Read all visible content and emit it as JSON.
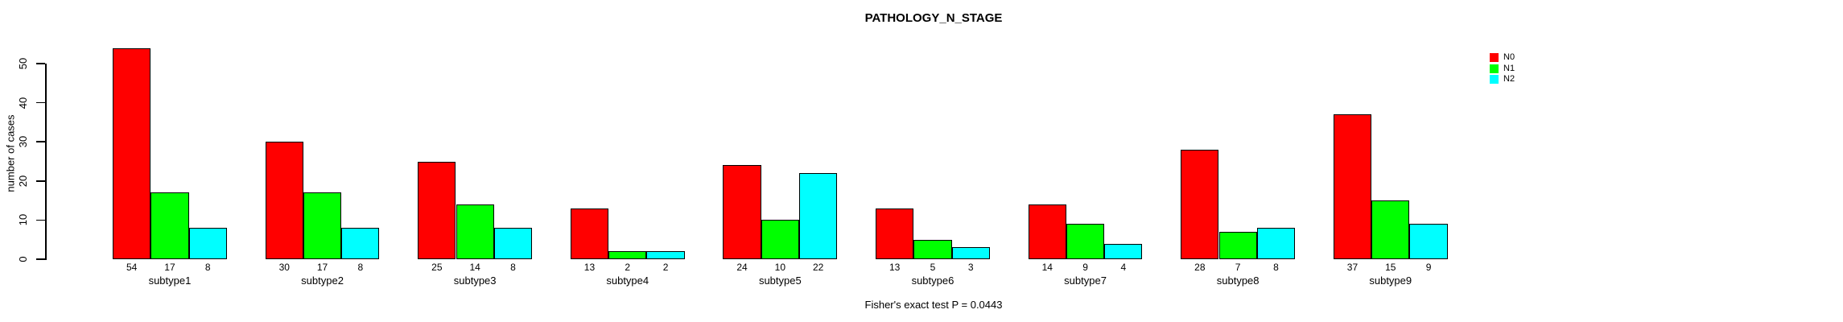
{
  "chart_data": {
    "type": "bar",
    "title": "PATHOLOGY_N_STAGE",
    "xlabel": "Fisher's exact test P = 0.0443",
    "ylabel": "number of cases",
    "categories": [
      "subtype1",
      "subtype2",
      "subtype3",
      "subtype4",
      "subtype5",
      "subtype6",
      "subtype7",
      "subtype8",
      "subtype9"
    ],
    "series": [
      {
        "name": "N0",
        "color": "#FF0000",
        "values": [
          54,
          30,
          25,
          13,
          24,
          13,
          14,
          28,
          37
        ]
      },
      {
        "name": "N1",
        "color": "#00FF00",
        "values": [
          17,
          17,
          14,
          2,
          10,
          5,
          9,
          7,
          15
        ]
      },
      {
        "name": "N2",
        "color": "#00FFFF",
        "values": [
          8,
          8,
          8,
          2,
          22,
          3,
          4,
          8,
          9
        ]
      }
    ],
    "yticks": [
      0,
      10,
      20,
      30,
      40,
      50
    ],
    "ylim": [
      0,
      56
    ],
    "grid": false,
    "legend_position": "top-right",
    "bar_value_labels": true,
    "axis_color": "#000000",
    "background_color": "#FFFFFF"
  }
}
